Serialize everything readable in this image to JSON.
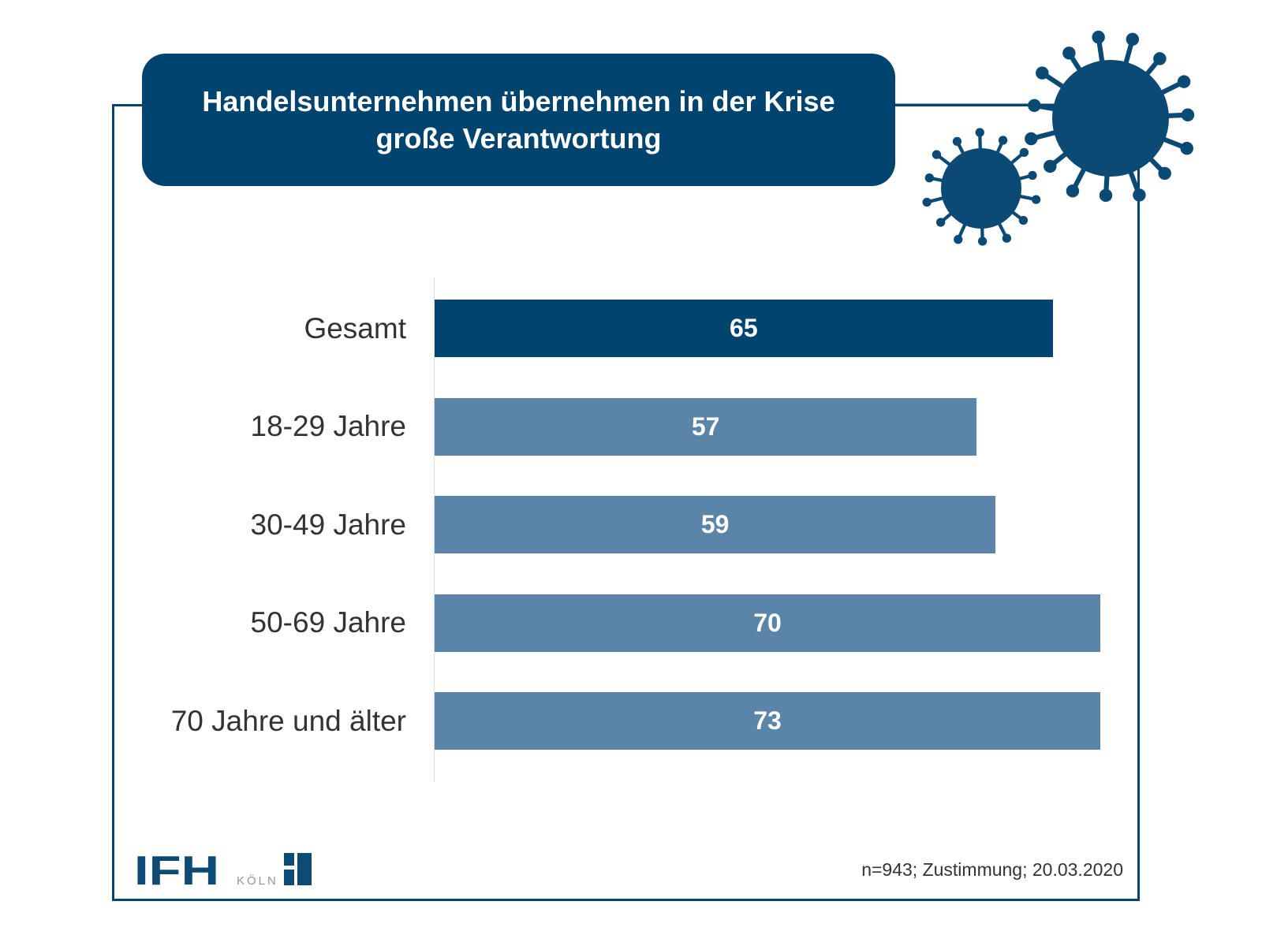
{
  "chart_data": {
    "type": "bar",
    "orientation": "horizontal",
    "title": "Handelsunternehmen übernehmen in der Krise große Verantwortung",
    "title_lines": [
      "Handelsunternehmen übernehmen in der Krise",
      "große Verantwortung"
    ],
    "categories": [
      "Gesamt",
      "18-29 Jahre",
      "30-49 Jahre",
      "50-69 Jahre",
      "70 Jahre und älter"
    ],
    "values": [
      65,
      57,
      59,
      70,
      73
    ],
    "xlim": [
      0,
      70
    ],
    "colors": {
      "highlight": "#024470",
      "default": "#5a84a8"
    },
    "footnote": "n=943; Zustimmung; 20.03.2020"
  },
  "logo": {
    "text": "IFH KÖLN"
  }
}
